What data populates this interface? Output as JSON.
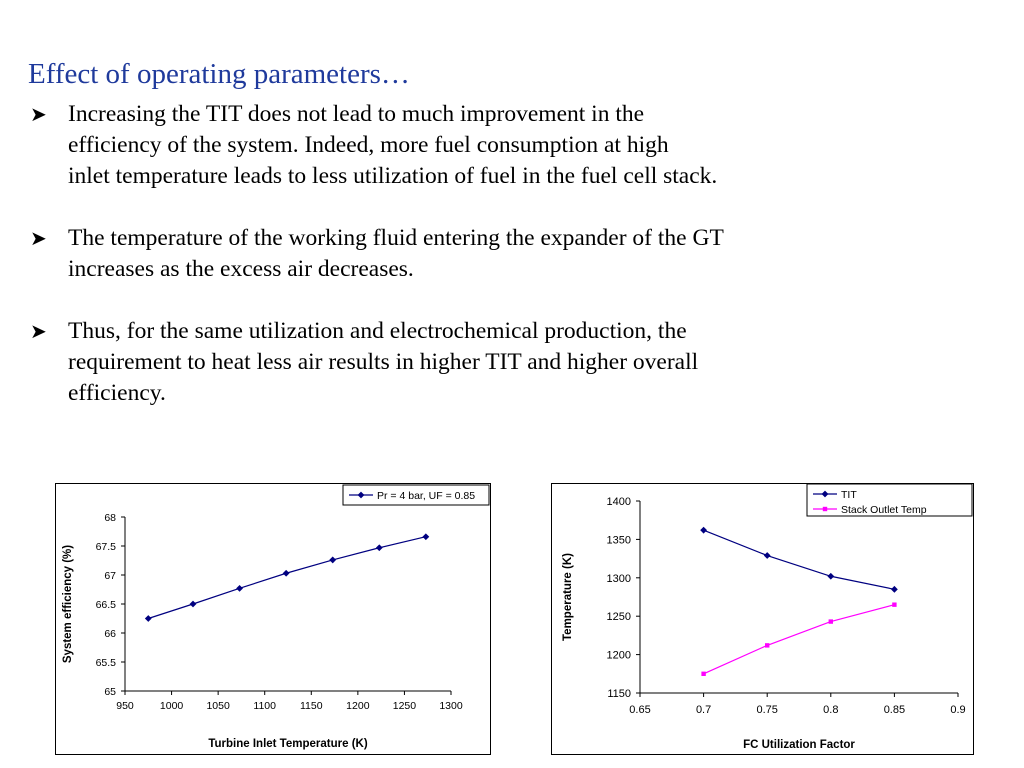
{
  "slide": {
    "title": "Effect of operating parameters…",
    "bullets": [
      {
        "lines": [
          "Increasing the TIT does not lead to much improvement in the",
          "efficiency of the system. Indeed, more fuel consumption at high",
          "inlet temperature leads to less utilization of fuel in the fuel cell stack."
        ]
      },
      {
        "lines": [
          "The temperature of the working fluid entering the expander of the GT",
          "increases as the excess air decreases."
        ]
      },
      {
        "lines": [
          "Thus, for the same utilization and electrochemical production, the",
          "requirement to heat less air results in higher TIT and higher overall",
          "efficiency."
        ]
      }
    ],
    "bullet_icon": "arrowhead-bullet-icon"
  },
  "chart_data": [
    {
      "type": "line",
      "xlabel": "Turbine Inlet Temperature (K)",
      "ylabel": "System efficiency (%)",
      "xlim": [
        950,
        1300
      ],
      "ylim": [
        65,
        68
      ],
      "x_ticks": [
        "950",
        "1000",
        "1050",
        "1100",
        "1150",
        "1200",
        "1250",
        "1300"
      ],
      "y_ticks": [
        "65",
        "65.5",
        "66",
        "66.5",
        "67",
        "67.5",
        "68"
      ],
      "grid": false,
      "legend_position": "top-right",
      "series": [
        {
          "name": "Pr = 4 bar, UF = 0.85",
          "color": "#000080",
          "marker": "diamond",
          "x": [
            975,
            1023,
            1073,
            1123,
            1173,
            1223,
            1273
          ],
          "y": [
            66.25,
            66.5,
            66.77,
            67.03,
            67.26,
            67.47,
            67.66
          ]
        }
      ]
    },
    {
      "type": "line",
      "xlabel": "FC Utilization Factor",
      "ylabel": "Temperature (K)",
      "xlim": [
        0.65,
        0.9
      ],
      "ylim": [
        1150,
        1400
      ],
      "x_ticks": [
        "0.65",
        "0.7",
        "0.75",
        "0.8",
        "0.85",
        "0.9"
      ],
      "y_ticks": [
        "1150",
        "1200",
        "1250",
        "1300",
        "1350",
        "1400"
      ],
      "grid": false,
      "legend_position": "top-right",
      "series": [
        {
          "name": "TIT",
          "color": "#000080",
          "marker": "diamond",
          "x": [
            0.7,
            0.75,
            0.8,
            0.85
          ],
          "y": [
            1362,
            1329,
            1302,
            1285
          ]
        },
        {
          "name": "Stack Outlet Temp",
          "color": "#ff00ff",
          "marker": "square",
          "x": [
            0.7,
            0.75,
            0.8,
            0.85
          ],
          "y": [
            1175,
            1212,
            1243,
            1265
          ]
        }
      ]
    }
  ]
}
